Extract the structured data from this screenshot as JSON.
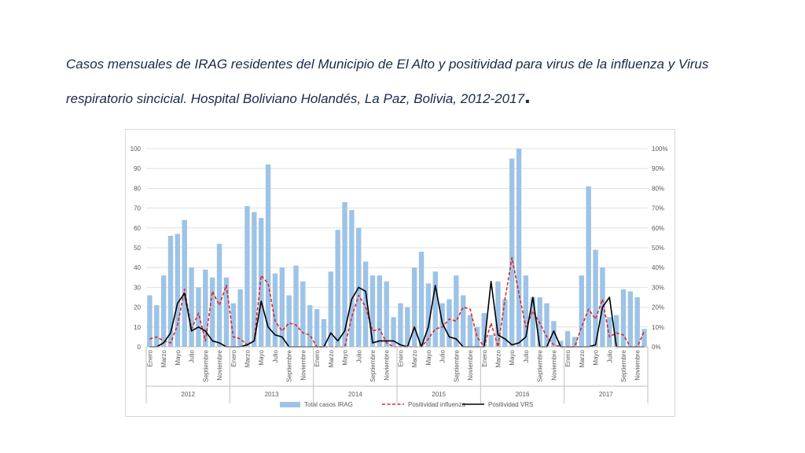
{
  "title": "Casos mensuales de IRAG residentes del Municipio de El Alto y positividad para virus de la influenza y Virus respiratorio sincicial. Hospital Boliviano Holandés, La Paz, Bolivia, 2012-2017",
  "title_end": ".",
  "chart_data": {
    "type": "bar",
    "colors": {
      "bars": "#9dc3e6",
      "influenza": "#e0262b",
      "vrs": "#000000",
      "grid": "#d9d9d9"
    },
    "years": [
      "2012",
      "2013",
      "2014",
      "2015",
      "2016",
      "2017"
    ],
    "month_labels": [
      "Enero",
      "Marzo",
      "Mayo",
      "Julio",
      "Septiembre",
      "Noviembre"
    ],
    "y_left": {
      "min": 0,
      "max": 100,
      "ticks": [
        "0",
        "10",
        "20",
        "30",
        "40",
        "50",
        "60",
        "70",
        "80",
        "90",
        "100"
      ]
    },
    "y_right": {
      "min": 0,
      "max": 1,
      "ticks": [
        "0%",
        "10%",
        "20%",
        "30%",
        "40%",
        "50%",
        "60%",
        "70%",
        "80%",
        "90%",
        "100%"
      ]
    },
    "series": [
      {
        "name": "Total casos IRAG",
        "kind": "bar",
        "axis": "left",
        "values": [
          26,
          21,
          36,
          56,
          57,
          64,
          40,
          30,
          39,
          35,
          52,
          35,
          22,
          29,
          71,
          68,
          65,
          92,
          37,
          40,
          26,
          41,
          33,
          21,
          19,
          14,
          38,
          59,
          73,
          69,
          60,
          43,
          36,
          36,
          33,
          15,
          22,
          20,
          40,
          48,
          32,
          38,
          22,
          24,
          36,
          26,
          16,
          10,
          17,
          6,
          33,
          24,
          95,
          100,
          36,
          25,
          25,
          22,
          13,
          3,
          8,
          5,
          36,
          81,
          49,
          40,
          15,
          16,
          29,
          28,
          25,
          9
        ]
      },
      {
        "name": "Positividad influenza",
        "kind": "line-dashed",
        "axis": "right",
        "values": [
          0.04,
          0.05,
          0.03,
          0.02,
          0.11,
          0.29,
          0.09,
          0.17,
          0.03,
          0.28,
          0.21,
          0.31,
          0.05,
          0.04,
          0.01,
          0.03,
          0.36,
          0.32,
          0.13,
          0.08,
          0.12,
          0.11,
          0.07,
          0.06,
          0,
          0,
          0,
          0,
          0,
          0.15,
          0.26,
          0.2,
          0.08,
          0.09,
          0.02,
          0,
          0,
          0,
          0,
          0,
          0.04,
          0.09,
          0.1,
          0.14,
          0.13,
          0.2,
          0.19,
          0.05,
          0,
          0.12,
          0,
          0.24,
          0.45,
          0.27,
          0.1,
          0.18,
          0.12,
          0.05,
          0.01,
          0,
          0,
          0,
          0.1,
          0.19,
          0.14,
          0.24,
          0.05,
          0.07,
          0.06,
          0,
          0,
          0.08
        ]
      },
      {
        "name": "Positividad VRS",
        "kind": "line",
        "axis": "right",
        "values": [
          0,
          0,
          0.02,
          0.07,
          0.22,
          0.27,
          0.08,
          0.1,
          0.08,
          0.03,
          0.02,
          0,
          0,
          0,
          0.01,
          0.03,
          0.23,
          0.1,
          0.06,
          0.05,
          0,
          0,
          0,
          0,
          0,
          0,
          0.07,
          0.03,
          0.08,
          0.24,
          0.3,
          0.28,
          0.02,
          0.03,
          0.03,
          0.03,
          0.01,
          0,
          0.1,
          0,
          0.1,
          0.31,
          0.12,
          0.05,
          0.04,
          0,
          0,
          0,
          0,
          0.33,
          0.06,
          0.04,
          0.01,
          0.02,
          0.05,
          0.25,
          0,
          0,
          0.08,
          0,
          0,
          0,
          0,
          0,
          0.01,
          0.2,
          0.25,
          0,
          0,
          0,
          0,
          0
        ]
      }
    ]
  }
}
